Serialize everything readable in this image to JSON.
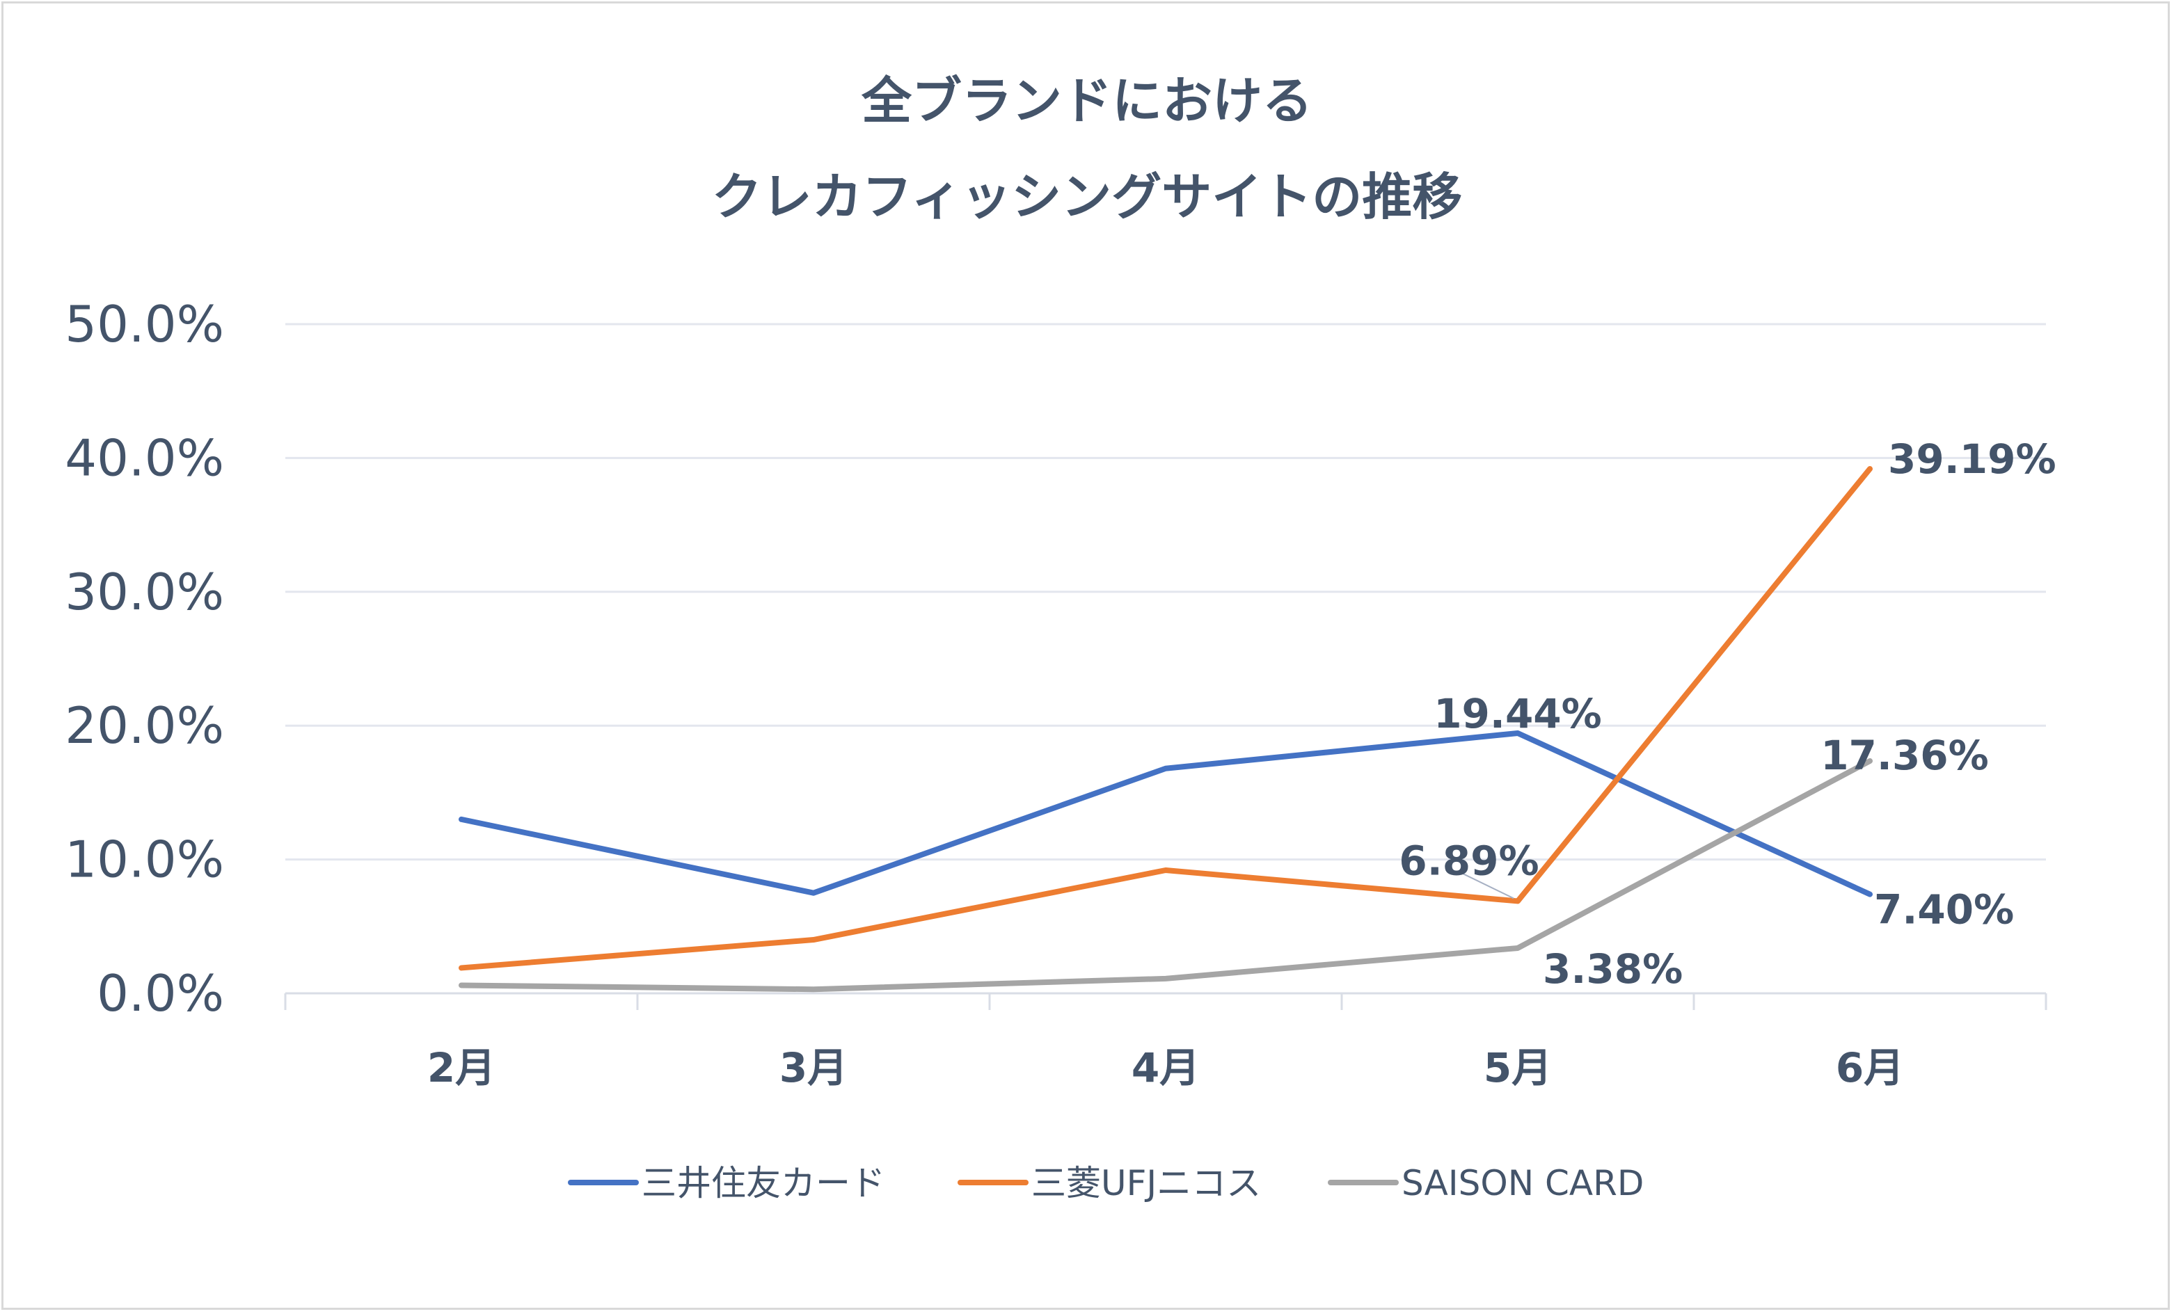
{
  "chart_data": {
    "type": "line",
    "title": [
      "全ブランドにおける",
      "クレカフィッシングサイトの推移"
    ],
    "categories": [
      "2月",
      "3月",
      "4月",
      "5月",
      "6月"
    ],
    "ylim": [
      0,
      50
    ],
    "yticks": [
      "0.0%",
      "10.0%",
      "20.0%",
      "30.0%",
      "40.0%",
      "50.0%"
    ],
    "grid": true,
    "legend": "bottom",
    "series": [
      {
        "name": "三井住友カード",
        "color": "#4472c4",
        "values": [
          13.0,
          7.5,
          16.8,
          19.44,
          7.4
        ],
        "labels": [
          null,
          null,
          null,
          "19.44%",
          "7.40%"
        ]
      },
      {
        "name": "三菱UFJニコス",
        "color": "#ed7d31",
        "values": [
          1.9,
          4.0,
          9.2,
          6.89,
          39.19
        ],
        "labels": [
          null,
          null,
          null,
          "6.89%",
          "39.19%"
        ]
      },
      {
        "name": "SAISON CARD",
        "color": "#a5a5a5",
        "values": [
          0.6,
          0.3,
          1.1,
          3.38,
          17.36
        ],
        "labels": [
          null,
          null,
          null,
          "3.38%",
          "17.36%"
        ]
      }
    ]
  }
}
